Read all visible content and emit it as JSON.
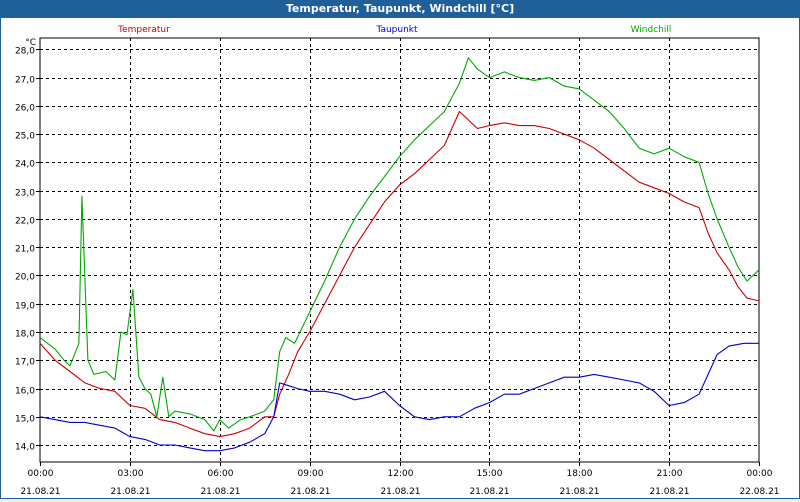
{
  "window": {
    "title": "Temperatur, Taupunkt, Windchill [°C]"
  },
  "chart_data": {
    "type": "line",
    "title": "Temperatur, Taupunkt, Windchill [°C]",
    "ylabel": "°C",
    "xlabel": "",
    "ylim": [
      13.4,
      28.4
    ],
    "xlim": [
      0,
      24
    ],
    "grid": true,
    "legend_position": "top",
    "y_ticks": [
      "14,0",
      "15,0",
      "16,0",
      "17,0",
      "18,0",
      "19,0",
      "20,0",
      "21,0",
      "22,0",
      "23,0",
      "24,0",
      "25,0",
      "26,0",
      "27,0",
      "28,0"
    ],
    "x_ticks": [
      {
        "time": "00:00",
        "date": "21.08.21"
      },
      {
        "time": "03:00",
        "date": "21.08.21"
      },
      {
        "time": "06:00",
        "date": "21.08.21"
      },
      {
        "time": "09:00",
        "date": "21.08.21"
      },
      {
        "time": "12:00",
        "date": "21.08.21"
      },
      {
        "time": "15:00",
        "date": "21.08.21"
      },
      {
        "time": "18:00",
        "date": "21.08.21"
      },
      {
        "time": "21:00",
        "date": "21.08.21"
      },
      {
        "time": "00:00",
        "date": "22.08.21"
      }
    ],
    "series": [
      {
        "name": "Temperatur",
        "color": "#cc0000",
        "points": [
          [
            0,
            17.6
          ],
          [
            0.5,
            17.0
          ],
          [
            1,
            16.6
          ],
          [
            1.5,
            16.2
          ],
          [
            2,
            16.0
          ],
          [
            2.5,
            15.9
          ],
          [
            3,
            15.4
          ],
          [
            3.5,
            15.3
          ],
          [
            4,
            14.9
          ],
          [
            4.5,
            14.8
          ],
          [
            5,
            14.6
          ],
          [
            5.5,
            14.4
          ],
          [
            6,
            14.3
          ],
          [
            6.5,
            14.4
          ],
          [
            7,
            14.6
          ],
          [
            7.5,
            15.0
          ],
          [
            7.8,
            15.0
          ],
          [
            8,
            15.8
          ],
          [
            8.3,
            16.5
          ],
          [
            8.6,
            17.3
          ],
          [
            9,
            18.0
          ],
          [
            9.5,
            19.0
          ],
          [
            10,
            20.0
          ],
          [
            10.5,
            21.0
          ],
          [
            11,
            21.8
          ],
          [
            11.5,
            22.6
          ],
          [
            12,
            23.2
          ],
          [
            12.5,
            23.6
          ],
          [
            13,
            24.1
          ],
          [
            13.5,
            24.6
          ],
          [
            14,
            25.8
          ],
          [
            14.3,
            25.5
          ],
          [
            14.6,
            25.2
          ],
          [
            15,
            25.3
          ],
          [
            15.5,
            25.4
          ],
          [
            16,
            25.3
          ],
          [
            16.5,
            25.3
          ],
          [
            17,
            25.2
          ],
          [
            17.5,
            25.0
          ],
          [
            18,
            24.8
          ],
          [
            18.5,
            24.5
          ],
          [
            19,
            24.1
          ],
          [
            19.5,
            23.7
          ],
          [
            20,
            23.3
          ],
          [
            20.5,
            23.1
          ],
          [
            21,
            22.9
          ],
          [
            21.5,
            22.6
          ],
          [
            22,
            22.4
          ],
          [
            22.3,
            21.5
          ],
          [
            22.6,
            20.8
          ],
          [
            23,
            20.2
          ],
          [
            23.3,
            19.6
          ],
          [
            23.6,
            19.2
          ],
          [
            24,
            19.1
          ]
        ]
      },
      {
        "name": "Taupunkt",
        "color": "#0000cc",
        "points": [
          [
            0,
            15.0
          ],
          [
            0.5,
            14.9
          ],
          [
            1,
            14.8
          ],
          [
            1.5,
            14.8
          ],
          [
            2,
            14.7
          ],
          [
            2.5,
            14.6
          ],
          [
            3,
            14.3
          ],
          [
            3.5,
            14.2
          ],
          [
            4,
            14.0
          ],
          [
            4.5,
            14.0
          ],
          [
            5,
            13.9
          ],
          [
            5.5,
            13.8
          ],
          [
            6,
            13.8
          ],
          [
            6.5,
            13.9
          ],
          [
            7,
            14.1
          ],
          [
            7.5,
            14.4
          ],
          [
            7.8,
            15.0
          ],
          [
            8,
            16.2
          ],
          [
            8.3,
            16.1
          ],
          [
            8.6,
            16.0
          ],
          [
            9,
            15.9
          ],
          [
            9.5,
            15.9
          ],
          [
            10,
            15.8
          ],
          [
            10.5,
            15.6
          ],
          [
            11,
            15.7
          ],
          [
            11.5,
            15.9
          ],
          [
            12,
            15.4
          ],
          [
            12.5,
            15.0
          ],
          [
            13,
            14.9
          ],
          [
            13.5,
            15.0
          ],
          [
            14,
            15.0
          ],
          [
            14.5,
            15.3
          ],
          [
            15,
            15.5
          ],
          [
            15.5,
            15.8
          ],
          [
            16,
            15.8
          ],
          [
            16.5,
            16.0
          ],
          [
            17,
            16.2
          ],
          [
            17.5,
            16.4
          ],
          [
            18,
            16.4
          ],
          [
            18.5,
            16.5
          ],
          [
            19,
            16.4
          ],
          [
            19.5,
            16.3
          ],
          [
            20,
            16.2
          ],
          [
            20.5,
            15.9
          ],
          [
            21,
            15.4
          ],
          [
            21.5,
            15.5
          ],
          [
            22,
            15.8
          ],
          [
            22.3,
            16.5
          ],
          [
            22.6,
            17.2
          ],
          [
            23,
            17.5
          ],
          [
            23.5,
            17.6
          ],
          [
            24,
            17.6
          ]
        ]
      },
      {
        "name": "Windchill",
        "color": "#00aa00",
        "points": [
          [
            0,
            17.8
          ],
          [
            0.5,
            17.4
          ],
          [
            0.8,
            17.0
          ],
          [
            1,
            16.8
          ],
          [
            1.3,
            17.6
          ],
          [
            1.4,
            22.8
          ],
          [
            1.6,
            17.0
          ],
          [
            1.8,
            16.5
          ],
          [
            2.2,
            16.6
          ],
          [
            2.5,
            16.3
          ],
          [
            2.7,
            18.0
          ],
          [
            2.9,
            17.9
          ],
          [
            3.1,
            19.5
          ],
          [
            3.3,
            16.4
          ],
          [
            3.5,
            16.0
          ],
          [
            3.7,
            15.8
          ],
          [
            3.9,
            15.0
          ],
          [
            4.1,
            16.4
          ],
          [
            4.3,
            15.0
          ],
          [
            4.5,
            15.2
          ],
          [
            5,
            15.1
          ],
          [
            5.5,
            14.9
          ],
          [
            5.8,
            14.5
          ],
          [
            6,
            14.9
          ],
          [
            6.3,
            14.6
          ],
          [
            6.7,
            14.9
          ],
          [
            7,
            15.0
          ],
          [
            7.5,
            15.2
          ],
          [
            7.8,
            15.6
          ],
          [
            8,
            17.3
          ],
          [
            8.2,
            17.8
          ],
          [
            8.5,
            17.6
          ],
          [
            9,
            18.7
          ],
          [
            9.5,
            19.8
          ],
          [
            10,
            21.0
          ],
          [
            10.5,
            22.0
          ],
          [
            11,
            22.8
          ],
          [
            11.5,
            23.5
          ],
          [
            12,
            24.2
          ],
          [
            12.5,
            24.8
          ],
          [
            13,
            25.3
          ],
          [
            13.5,
            25.8
          ],
          [
            14,
            26.8
          ],
          [
            14.3,
            27.7
          ],
          [
            14.6,
            27.3
          ],
          [
            15,
            27.0
          ],
          [
            15.5,
            27.2
          ],
          [
            16,
            27.0
          ],
          [
            16.5,
            26.9
          ],
          [
            17,
            27.0
          ],
          [
            17.5,
            26.7
          ],
          [
            18,
            26.6
          ],
          [
            18.5,
            26.2
          ],
          [
            19,
            25.8
          ],
          [
            19.5,
            25.2
          ],
          [
            20,
            24.5
          ],
          [
            20.5,
            24.3
          ],
          [
            21,
            24.5
          ],
          [
            21.5,
            24.2
          ],
          [
            22,
            24.0
          ],
          [
            22.3,
            22.9
          ],
          [
            22.6,
            22.0
          ],
          [
            23,
            21.0
          ],
          [
            23.3,
            20.3
          ],
          [
            23.6,
            19.8
          ],
          [
            24,
            20.2
          ]
        ]
      }
    ]
  }
}
